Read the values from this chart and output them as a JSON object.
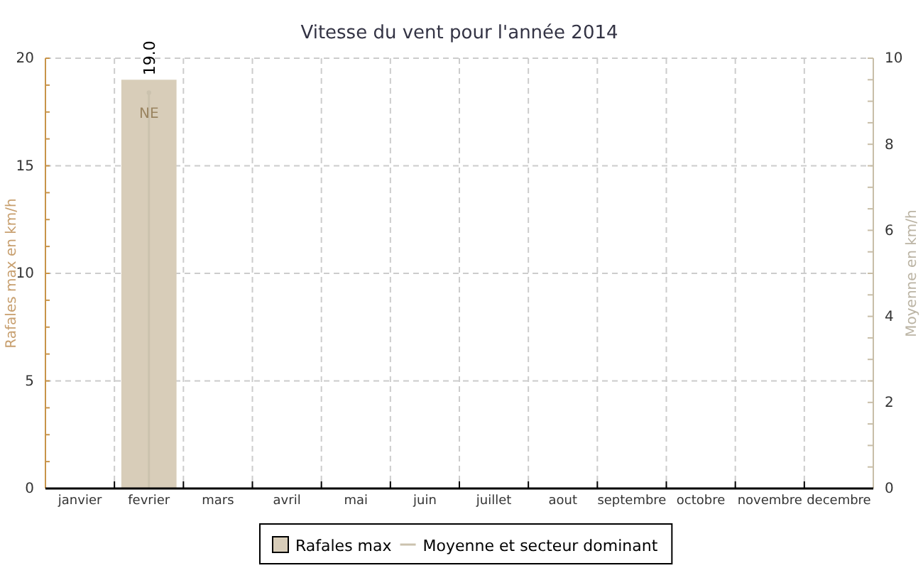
{
  "chart_data": {
    "type": "bar",
    "title": "Vitesse du vent pour l'année 2014",
    "ylabel": "Rafales max en km/h",
    "y2label": "Moyenne en km/h",
    "categories": [
      "janvier",
      "fevrier",
      "mars",
      "avril",
      "mai",
      "juin",
      "juillet",
      "aout",
      "septembre",
      "octobre",
      "novembre",
      "decembre"
    ],
    "series": [
      {
        "name": "Rafales max",
        "color": "#d8cdb9",
        "values": [
          null,
          19.0,
          null,
          null,
          null,
          null,
          null,
          null,
          null,
          null,
          null,
          null
        ],
        "value_labels": [
          null,
          "19.0",
          null,
          null,
          null,
          null,
          null,
          null,
          null,
          null,
          null,
          null
        ]
      },
      {
        "name": "Moyenne et secteur dominant",
        "type": "lollipop",
        "axis": "y2",
        "color": "#cbc2ae",
        "values": [
          null,
          9.2,
          null,
          null,
          null,
          null,
          null,
          null,
          null,
          null,
          null,
          null
        ]
      }
    ],
    "annotations": [
      "NE"
    ],
    "ylim": [
      0,
      20
    ],
    "yticks": [
      0,
      {
        "value": 1.25,
        "label": null
      },
      {
        "value": 2.5,
        "label": null
      },
      {
        "value": 3.75,
        "label": null
      },
      5,
      {
        "value": 6.25,
        "label": null
      },
      {
        "value": 7.5,
        "label": null
      },
      {
        "value": 8.75,
        "label": null
      },
      10,
      {
        "value": 11.25,
        "label": null
      },
      {
        "value": 12.5,
        "label": null
      },
      {
        "value": 13.75,
        "label": null
      },
      15,
      {
        "value": 16.25,
        "label": null
      },
      {
        "value": 17.5,
        "label": null
      },
      {
        "value": 18.75,
        "label": null
      },
      20
    ],
    "y2lim": [
      0,
      10
    ],
    "y2ticks": [
      0,
      {
        "value": 0.5,
        "label": null
      },
      {
        "value": 1,
        "label": null
      },
      {
        "value": 1.5,
        "label": null
      },
      2,
      {
        "value": 2.5,
        "label": null
      },
      {
        "value": 3,
        "label": null
      },
      {
        "value": 3.5,
        "label": null
      },
      4,
      {
        "value": 4.5,
        "label": null
      },
      {
        "value": 5,
        "label": null
      },
      {
        "value": 5.5,
        "label": null
      },
      6,
      {
        "value": 6.5,
        "label": null
      },
      {
        "value": 7,
        "label": null
      },
      {
        "value": 7.5,
        "label": null
      },
      8,
      {
        "value": 8.5,
        "label": null
      },
      {
        "value": 9,
        "label": null
      },
      {
        "value": 9.5,
        "label": null
      },
      10
    ],
    "grid": true,
    "legend": "bottom",
    "marker": "circle"
  }
}
